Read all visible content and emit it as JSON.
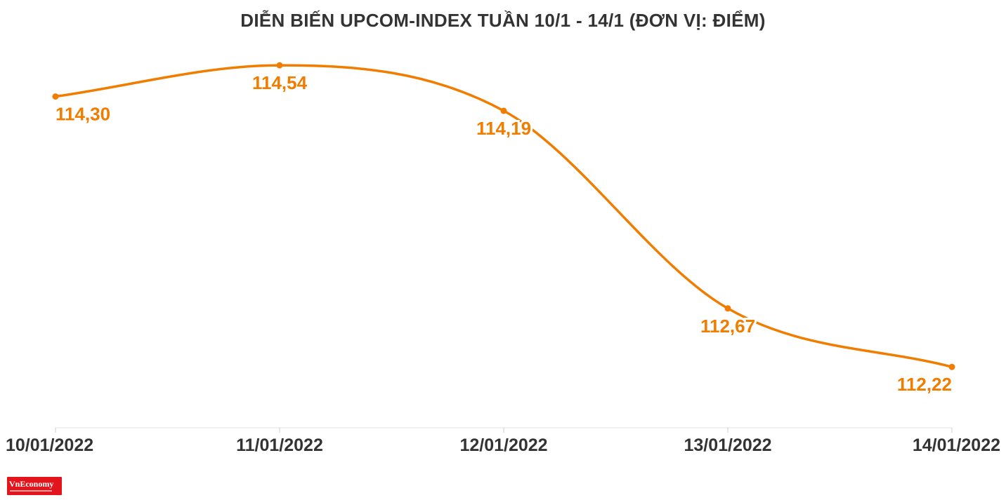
{
  "chart_data": {
    "type": "line",
    "title": "DIỄN BIẾN UPCOM-INDEX TUẦN 10/1 - 14/1 (ĐƠN VỊ: ĐIỂM)",
    "xlabel": "",
    "ylabel": "",
    "categories": [
      "10/01/2022",
      "11/01/2022",
      "12/01/2022",
      "13/01/2022",
      "14/01/2022"
    ],
    "series": [
      {
        "values": [
          114.3,
          114.54,
          114.19,
          112.67,
          112.22
        ],
        "labels": [
          "114,30",
          "114,54",
          "114,19",
          "112,67",
          "112,22"
        ]
      }
    ],
    "ylim": [
      112.0,
      114.6
    ],
    "grid": false,
    "smooth": true,
    "color": "#f07d00"
  },
  "branding": {
    "logo": "VnEconomy"
  }
}
